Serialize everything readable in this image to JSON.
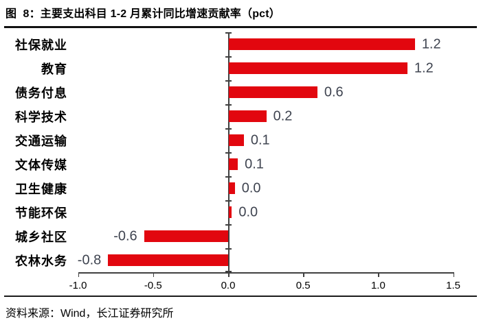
{
  "figure": {
    "title": "图  8：主要支出科目 1-2 月累计同比增速贡献率（pct）",
    "source": "资料来源：Wind，长江证券研究所"
  },
  "chart_data": {
    "type": "bar",
    "orientation": "horizontal",
    "title": "主要支出科目 1-2 月累计同比增速贡献率（pct）",
    "categories": [
      "社保就业",
      "教育",
      "债务付息",
      "科学技术",
      "交通运输",
      "文体传媒",
      "卫生健康",
      "节能环保",
      "城乡社区",
      "农林水务"
    ],
    "values": [
      1.24,
      1.19,
      0.59,
      0.25,
      0.1,
      0.06,
      0.04,
      0.02,
      -0.56,
      -0.8
    ],
    "value_labels": [
      "1.2",
      "1.2",
      "0.6",
      "0.2",
      "0.1",
      "0.1",
      "0.0",
      "0.0",
      "-0.6",
      "-0.8"
    ],
    "xlim": [
      -1.0,
      1.5
    ],
    "x_ticks": [
      -1.0,
      -0.5,
      0.0,
      0.5,
      1.0,
      1.5
    ],
    "x_tick_labels": [
      "-1.0",
      "-0.5",
      "0.0",
      "0.5",
      "1.0",
      "1.5"
    ],
    "bar_color": "#e2070f",
    "value_label_color": "#3f4450",
    "axis_color": "#3f3f3f",
    "grid": false,
    "legend": "none"
  }
}
